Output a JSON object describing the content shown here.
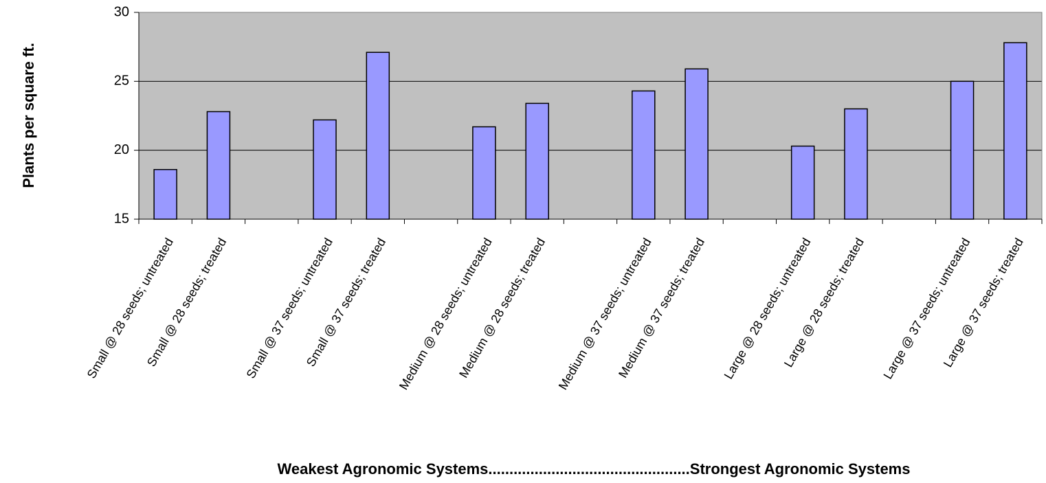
{
  "chart_data": {
    "type": "bar",
    "categories": [
      "Small @ 28 seeds; untreated",
      "Small @ 28 seeds; treated",
      "",
      "Small @ 37 seeds; untreated",
      "Small @ 37 seeds; treated",
      "",
      "Medium @ 28 seeds; untreated",
      "Medium @ 28 seeds; treated",
      "",
      "Medium @ 37 seeds; untreated",
      "Medium @ 37 seeds; treated",
      "",
      "Large @ 28 seeds; untreated",
      "Large @ 28 seeds; treated",
      "",
      "Large @ 37 seeds; untreated",
      "Large @ 37 seeds; treated"
    ],
    "values": [
      18.6,
      22.8,
      null,
      22.2,
      27.1,
      null,
      21.7,
      23.4,
      null,
      24.3,
      25.9,
      null,
      20.3,
      23.0,
      null,
      25.0,
      27.8
    ],
    "title": "",
    "xlabel": "Weakest Agronomic Systems................................................Strongest Agronomic Systems",
    "ylabel": "Plants per square ft.",
    "ylim": [
      15,
      30
    ],
    "yticks": [
      15,
      20,
      25,
      30
    ],
    "grid": true,
    "legend": "none",
    "bar_color": "#9999ff",
    "plot_background": "#c0c0c0"
  }
}
